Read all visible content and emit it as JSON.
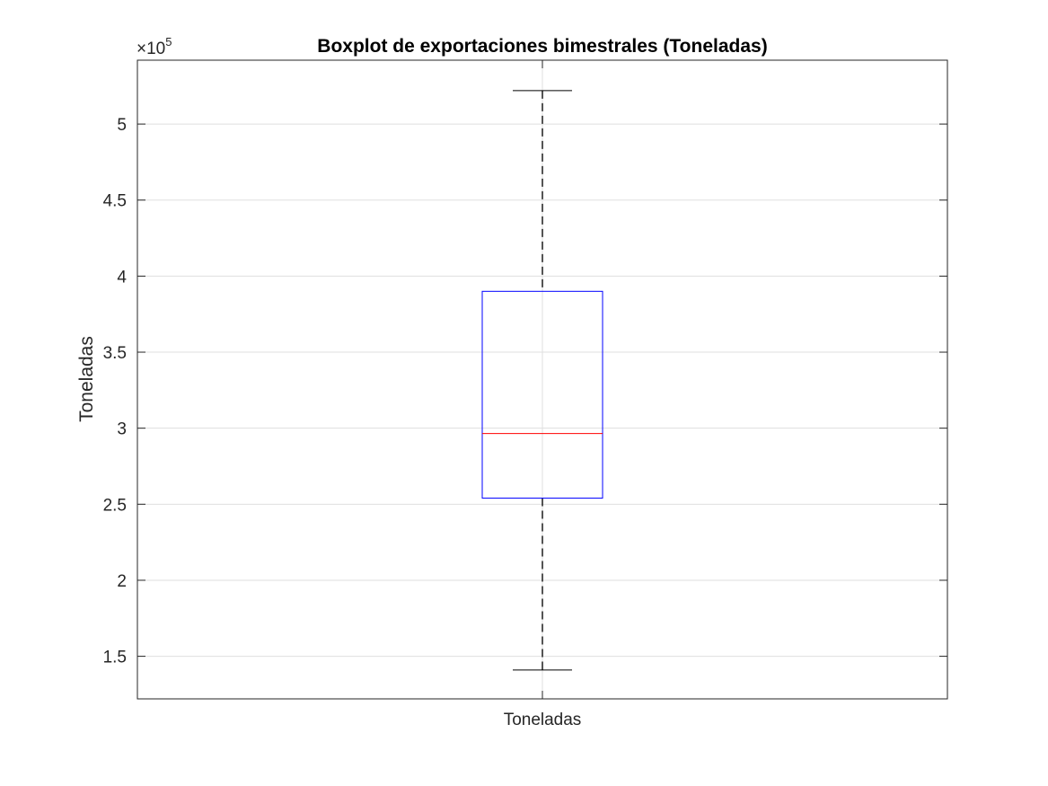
{
  "chart_data": {
    "type": "box",
    "title": "Boxplot de exportaciones bimestrales (Toneladas)",
    "xlabel": "",
    "ylabel": "Toneladas",
    "exponent_base": "×10",
    "exponent_power": "5",
    "categories": [
      "Toneladas"
    ],
    "ylim": [
      1.22,
      5.42
    ],
    "yticks": [
      1.5,
      2,
      2.5,
      3,
      3.5,
      4,
      4.5,
      5
    ],
    "ytick_labels": [
      "1.5",
      "2",
      "2.5",
      "3",
      "3.5",
      "4",
      "4.5",
      "5"
    ],
    "grid": true,
    "boxes": [
      {
        "category": "Toneladas",
        "whisker_low": 1.41,
        "q1": 2.54,
        "median": 2.965,
        "q3": 3.9,
        "whisker_high": 5.22
      }
    ],
    "colors": {
      "box": "#0000ff",
      "median": "#ff0000",
      "whisker": "#000000",
      "grid": "#dfdfdf",
      "axis": "#262626"
    }
  }
}
